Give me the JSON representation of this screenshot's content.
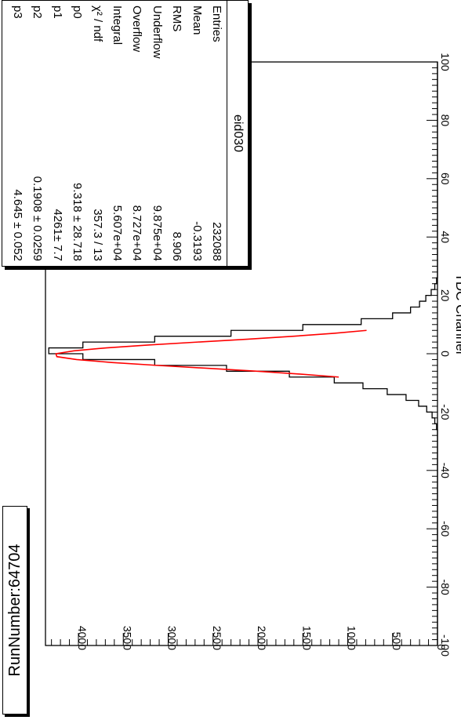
{
  "run_label": "RunNumber:64704",
  "stats": {
    "title": "eid030",
    "rows": [
      {
        "key": "Entries",
        "value": "232088"
      },
      {
        "key": "Mean",
        "value": "-0.3193"
      },
      {
        "key": "RMS",
        "value": "8.906"
      },
      {
        "key": "Underflow",
        "value": "9.875e+04"
      },
      {
        "key": "Overflow",
        "value": "8.727e+04"
      },
      {
        "key": "Integral",
        "value": "5.607e+04"
      },
      {
        "key": "χ² / ndf",
        "value": "357.3 / 13"
      },
      {
        "key": "p0",
        "value": "9.318 ± 28.718"
      },
      {
        "key": "p1",
        "value": "4261± 7.7"
      },
      {
        "key": "p2",
        "value": "0.1908 ± 0.0259"
      },
      {
        "key": "p3",
        "value": "4.645 ± 0.052"
      }
    ]
  },
  "chart_data": {
    "type": "line",
    "title": "",
    "xlabel": "TDC Channel",
    "ylabel": "",
    "xlim": [
      -100,
      100
    ],
    "ylim": [
      0,
      4400
    ],
    "x_ticks": [
      -100,
      -80,
      -60,
      -40,
      -20,
      0,
      20,
      40,
      60,
      80,
      100
    ],
    "x_tick_labels": [
      "-100",
      "-80",
      "-60",
      "-40",
      "-20",
      "0",
      "20",
      "40",
      "60",
      "80",
      "100"
    ],
    "y_ticks": [
      0,
      500,
      1000,
      1500,
      2000,
      2500,
      3000,
      3500,
      4000
    ],
    "y_tick_labels": [
      "0",
      "500",
      "1000",
      "1500",
      "2000",
      "2500",
      "3000",
      "3500",
      "4000"
    ],
    "colors": {
      "histogram": "#000000",
      "fit": "#ff0000"
    },
    "series": [
      {
        "kind": "histogram",
        "x": [
          -100,
          -30,
          -26,
          -24,
          -22,
          -20,
          -18,
          -16,
          -14,
          -12,
          -10,
          -8,
          -6,
          -4,
          -2,
          0,
          2,
          4,
          6,
          8,
          10,
          12,
          14,
          16,
          18,
          20,
          22,
          24,
          26,
          30,
          100
        ],
        "y": [
          0,
          0,
          10,
          30,
          60,
          120,
          210,
          350,
          560,
          830,
          1150,
          1650,
          2350,
          3150,
          3950,
          4330,
          3950,
          3150,
          2300,
          1500,
          850,
          500,
          300,
          200,
          130,
          70,
          30,
          10,
          0,
          0,
          0
        ]
      },
      {
        "kind": "fit",
        "x": [
          -8,
          -7,
          -6,
          -5,
          -4,
          -3,
          -2,
          -1,
          0,
          1,
          2,
          3,
          4,
          5,
          6,
          7,
          8
        ],
        "y": [
          1100,
          1520,
          2010,
          2560,
          3120,
          3630,
          4020,
          4240,
          4250,
          4050,
          3690,
          3210,
          2670,
          2110,
          1600,
          1150,
          790
        ]
      }
    ]
  }
}
